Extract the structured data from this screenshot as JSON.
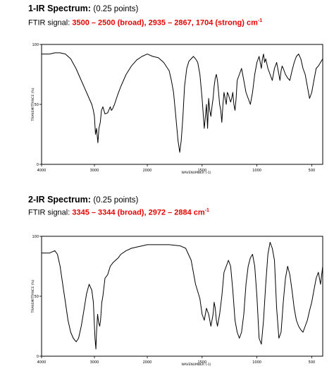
{
  "charts": [
    {
      "heading_main": "1-IR Spectrum:",
      "heading_points": "(0.25 points)",
      "signal_label": "FTIR signal:",
      "signal_values": "3500 – 2500 (broad), 2935 – 2867, 1704 (strong) cm",
      "signal_unit_sup": "-1",
      "accent_color": "#e60000"
    },
    {
      "heading_main": "2-IR Spectrum:",
      "heading_points": "(0.25 points)",
      "signal_label": "FTIR signal:",
      "signal_values": "3345 – 3344 (broad), 2972 – 2884 cm",
      "signal_unit_sup": "-1",
      "accent_color": "#e60000"
    }
  ],
  "chart_data": [
    {
      "type": "line",
      "xlabel": "WAVENUMBER (-1)",
      "ylabel": "TRANSMITTANCE (%)",
      "xlim": [
        4000,
        400
      ],
      "ylim": [
        0,
        100
      ],
      "x_ticks": [
        4000,
        3000,
        2000,
        1500,
        1000,
        500
      ],
      "x_tick_labels": [
        "4000",
        "3000",
        "2000",
        "1500",
        "1000",
        "500"
      ],
      "y_ticks": [
        0,
        50,
        100
      ],
      "y_tick_labels": [
        "0",
        "50",
        "100"
      ],
      "x": [
        4000,
        3950,
        3850,
        3750,
        3650,
        3550,
        3450,
        3350,
        3250,
        3150,
        3100,
        3050,
        3020,
        3000,
        2980,
        2960,
        2935,
        2915,
        2890,
        2867,
        2840,
        2800,
        2750,
        2700,
        2680,
        2660,
        2620,
        2560,
        2500,
        2400,
        2300,
        2200,
        2100,
        2000,
        1950,
        1900,
        1850,
        1800,
        1780,
        1760,
        1740,
        1720,
        1704,
        1690,
        1675,
        1660,
        1640,
        1620,
        1600,
        1580,
        1560,
        1540,
        1520,
        1500,
        1480,
        1470,
        1460,
        1450,
        1440,
        1430,
        1420,
        1410,
        1400,
        1390,
        1380,
        1370,
        1360,
        1350,
        1340,
        1330,
        1320,
        1310,
        1300,
        1290,
        1280,
        1270,
        1260,
        1250,
        1240,
        1230,
        1220,
        1210,
        1200,
        1190,
        1180,
        1160,
        1140,
        1120,
        1100,
        1080,
        1060,
        1040,
        1020,
        1000,
        980,
        960,
        950,
        940,
        930,
        920,
        900,
        880,
        860,
        840,
        820,
        800,
        790,
        780,
        770,
        760,
        740,
        720,
        700,
        680,
        660,
        640,
        620,
        600,
        580,
        560,
        540,
        520,
        500,
        480,
        460,
        440,
        420,
        400
      ],
      "y": [
        92,
        92,
        92,
        93,
        93,
        92,
        88,
        80,
        70,
        60,
        55,
        50,
        45,
        40,
        25,
        30,
        18,
        30,
        35,
        45,
        48,
        42,
        43,
        48,
        45,
        46,
        50,
        58,
        65,
        75,
        82,
        87,
        90,
        92,
        90,
        89,
        85,
        78,
        70,
        60,
        40,
        20,
        10,
        20,
        40,
        65,
        80,
        86,
        88,
        90,
        88,
        85,
        75,
        55,
        30,
        40,
        50,
        30,
        55,
        45,
        40,
        48,
        55,
        65,
        72,
        75,
        70,
        60,
        50,
        45,
        35,
        50,
        60,
        55,
        50,
        60,
        58,
        55,
        52,
        55,
        60,
        50,
        45,
        55,
        70,
        75,
        80,
        70,
        60,
        55,
        50,
        60,
        75,
        85,
        90,
        80,
        88,
        92,
        85,
        88,
        80,
        75,
        70,
        80,
        85,
        75,
        70,
        78,
        82,
        80,
        75,
        72,
        70,
        78,
        85,
        90,
        92,
        88,
        80,
        75,
        65,
        55,
        60,
        70,
        80,
        82,
        85,
        88
      ],
      "color": "#000000"
    },
    {
      "type": "line",
      "xlabel": "WAVENUMBER (-1)",
      "ylabel": "TRANSMITTANCE (%)",
      "xlim": [
        4000,
        400
      ],
      "ylim": [
        0,
        100
      ],
      "x_ticks": [
        4000,
        3000,
        2000,
        1500,
        1000,
        500
      ],
      "x_tick_labels": [
        "4000",
        "3000",
        "2000",
        "1500",
        "1000",
        "500"
      ],
      "y_ticks": [
        0,
        50,
        100
      ],
      "y_tick_labels": [
        "0",
        "50",
        "100"
      ],
      "x": [
        4000,
        3950,
        3850,
        3800,
        3750,
        3700,
        3650,
        3600,
        3550,
        3500,
        3450,
        3400,
        3345,
        3300,
        3250,
        3200,
        3150,
        3100,
        3050,
        3020,
        2990,
        2972,
        2960,
        2940,
        2920,
        2900,
        2884,
        2860,
        2840,
        2800,
        2750,
        2700,
        2650,
        2600,
        2550,
        2500,
        2400,
        2300,
        2200,
        2100,
        2000,
        1900,
        1800,
        1700,
        1650,
        1600,
        1560,
        1520,
        1500,
        1480,
        1460,
        1440,
        1420,
        1400,
        1390,
        1380,
        1370,
        1360,
        1340,
        1320,
        1300,
        1280,
        1260,
        1240,
        1220,
        1200,
        1180,
        1160,
        1140,
        1120,
        1100,
        1080,
        1060,
        1040,
        1020,
        1000,
        980,
        960,
        940,
        920,
        900,
        880,
        860,
        840,
        820,
        800,
        780,
        760,
        740,
        720,
        700,
        680,
        660,
        640,
        620,
        600,
        580,
        560,
        540,
        520,
        500,
        480,
        460,
        440,
        420,
        400
      ],
      "y": [
        86,
        86,
        86,
        87,
        88,
        85,
        75,
        60,
        45,
        30,
        20,
        15,
        12,
        15,
        25,
        38,
        52,
        60,
        55,
        45,
        15,
        6,
        20,
        35,
        28,
        25,
        30,
        45,
        50,
        65,
        68,
        75,
        78,
        80,
        82,
        85,
        88,
        90,
        91,
        92,
        93,
        93,
        93,
        92,
        90,
        80,
        60,
        48,
        35,
        30,
        40,
        35,
        25,
        35,
        45,
        40,
        30,
        25,
        35,
        50,
        70,
        75,
        80,
        75,
        55,
        30,
        20,
        15,
        20,
        35,
        60,
        75,
        82,
        85,
        75,
        50,
        15,
        10,
        30,
        60,
        85,
        95,
        90,
        80,
        40,
        15,
        20,
        45,
        65,
        75,
        68,
        55,
        40,
        30,
        25,
        22,
        20,
        25,
        30,
        38,
        45,
        55,
        65,
        70,
        60,
        75
      ],
      "color": "#000000"
    }
  ]
}
